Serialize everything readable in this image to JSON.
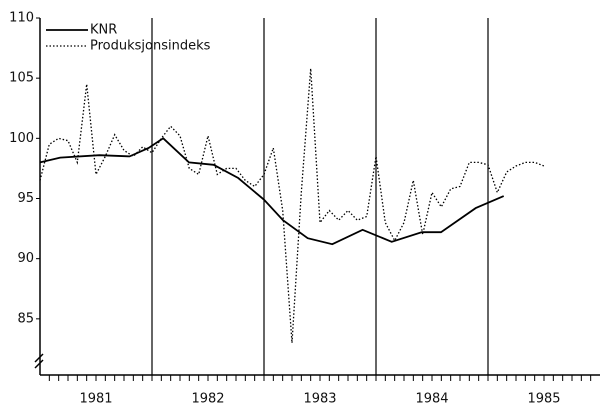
{
  "chart_data": {
    "type": "line",
    "xlim": [
      1981,
      1986
    ],
    "ylim": [
      80,
      110
    ],
    "yticks": [
      85,
      90,
      95,
      100,
      105,
      110
    ],
    "xticks": [
      {
        "value": 1981.5,
        "label": "1981"
      },
      {
        "value": 1982.5,
        "label": "1982"
      },
      {
        "value": 1983.5,
        "label": "1983"
      },
      {
        "value": 1984.5,
        "label": "1984"
      },
      {
        "value": 1985.5,
        "label": "1985"
      }
    ],
    "vlines": [
      1982,
      1983,
      1984,
      1985
    ],
    "legend": "upper left",
    "series": [
      {
        "name": "KNR",
        "color": "#000000",
        "style": "solid",
        "x": [
          1981.0,
          1981.18,
          1981.53,
          1981.8,
          1981.97,
          1982.1,
          1982.33,
          1982.55,
          1982.77,
          1983.0,
          1983.17,
          1983.39,
          1983.61,
          1983.88,
          1984.14,
          1984.41,
          1984.58,
          1984.89,
          1985.14
        ],
        "values": [
          98.0,
          98.4,
          98.6,
          98.5,
          99.2,
          100.0,
          98.0,
          97.8,
          96.7,
          94.9,
          93.2,
          91.7,
          91.2,
          92.4,
          91.4,
          92.2,
          92.2,
          94.2,
          95.2
        ]
      },
      {
        "name": "Produksjonsindeks",
        "color": "#000000",
        "style": "dotted",
        "x": [
          1981.0,
          1981.083,
          1981.167,
          1981.25,
          1981.333,
          1981.417,
          1981.5,
          1981.583,
          1981.667,
          1981.75,
          1981.833,
          1981.917,
          1982.0,
          1982.083,
          1982.167,
          1982.25,
          1982.333,
          1982.417,
          1982.5,
          1982.583,
          1982.667,
          1982.75,
          1982.833,
          1982.917,
          1983.0,
          1983.083,
          1983.167,
          1983.25,
          1983.333,
          1983.417,
          1983.5,
          1983.583,
          1983.667,
          1983.75,
          1983.833,
          1983.917,
          1984.0,
          1984.083,
          1984.167,
          1984.25,
          1984.333,
          1984.417,
          1984.5,
          1984.583,
          1984.667,
          1984.75,
          1984.833,
          1984.917,
          1985.0,
          1985.083,
          1985.167,
          1985.25,
          1985.333,
          1985.417,
          1985.5
        ],
        "values": [
          96.5,
          99.5,
          100,
          99.8,
          98,
          104.5,
          97,
          98.5,
          100.3,
          99,
          98.5,
          99.3,
          98.8,
          100,
          101,
          100.2,
          97.5,
          97,
          100.2,
          97,
          97.5,
          97.5,
          96.5,
          96,
          97,
          99.2,
          94,
          83,
          95.5,
          105.8,
          93,
          94,
          93.2,
          94,
          93.2,
          93.5,
          98.5,
          93,
          91.5,
          93,
          96.5,
          92,
          95.5,
          94.3,
          95.8,
          96,
          98,
          98,
          97.8,
          95.5,
          97.2,
          97.7,
          98,
          98,
          97.7
        ]
      }
    ]
  }
}
